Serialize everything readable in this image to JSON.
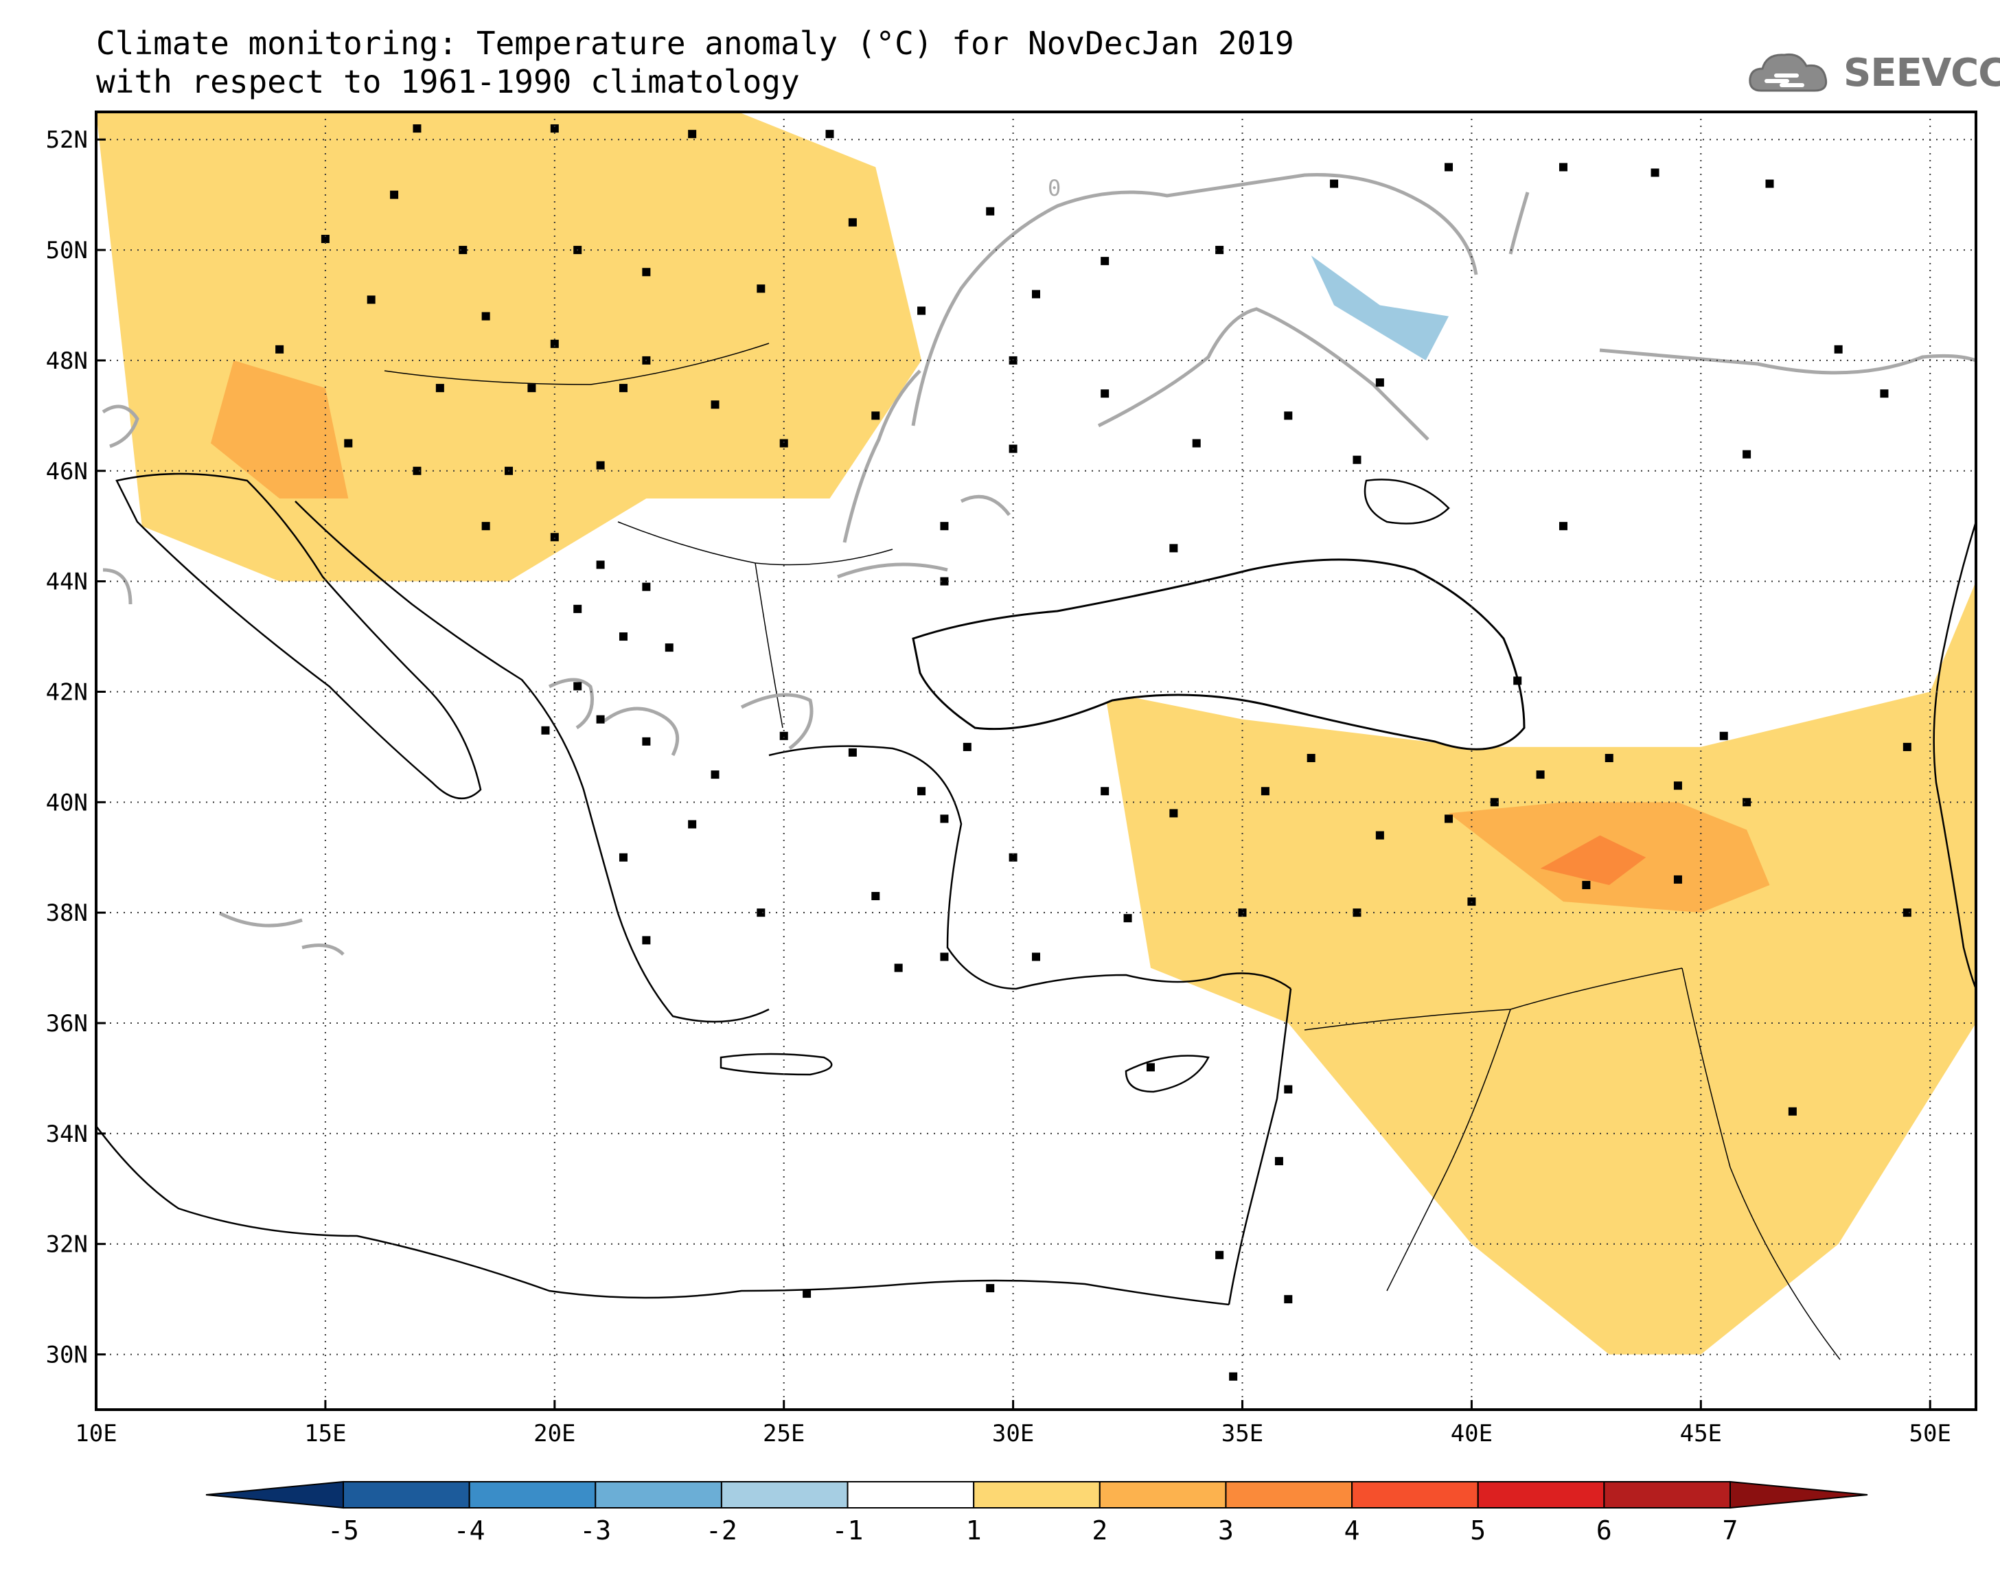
{
  "title": {
    "line1": "Climate monitoring: Temperature anomaly (°C) for NovDecJan 2019",
    "line2": "with respect to 1961-1990 climatology"
  },
  "logo": {
    "text": "SEEVCCC",
    "icon": "cloud-icon"
  },
  "map": {
    "lon_range": [
      10,
      51
    ],
    "lat_range": [
      29,
      52.5
    ],
    "lon_ticks": [
      {
        "value": 10,
        "label": "10E"
      },
      {
        "value": 15,
        "label": "15E"
      },
      {
        "value": 20,
        "label": "20E"
      },
      {
        "value": 25,
        "label": "25E"
      },
      {
        "value": 30,
        "label": "30E"
      },
      {
        "value": 35,
        "label": "35E"
      },
      {
        "value": 40,
        "label": "40E"
      },
      {
        "value": 45,
        "label": "45E"
      },
      {
        "value": 50,
        "label": "50E"
      }
    ],
    "lat_ticks": [
      {
        "value": 30,
        "label": "30N"
      },
      {
        "value": 32,
        "label": "32N"
      },
      {
        "value": 34,
        "label": "34N"
      },
      {
        "value": 36,
        "label": "36N"
      },
      {
        "value": 38,
        "label": "38N"
      },
      {
        "value": 40,
        "label": "40N"
      },
      {
        "value": 42,
        "label": "42N"
      },
      {
        "value": 44,
        "label": "44N"
      },
      {
        "value": 46,
        "label": "46N"
      },
      {
        "value": 48,
        "label": "48N"
      },
      {
        "value": 50,
        "label": "50N"
      },
      {
        "value": 52,
        "label": "52N"
      }
    ],
    "grid": "dotted",
    "contour_label": "0",
    "colors": {
      "anomaly_1_2": "#fdd873",
      "anomaly_2_3": "#fcb24e",
      "anomaly_3_4": "#fa8a3a",
      "anomaly_neg_1_2": "#9ecae1",
      "zero_contour": "#a8a8a8",
      "coast": "#000000"
    }
  },
  "colorbar": {
    "labels": [
      "-5",
      "-4",
      "-3",
      "-2",
      "-1",
      "1",
      "2",
      "3",
      "4",
      "5",
      "6",
      "7"
    ],
    "colors": [
      "#08306b",
      "#1c5b9b",
      "#3a8dc8",
      "#6baed6",
      "#a6cee3",
      "#ffffff",
      "#fdd873",
      "#fcb24e",
      "#fa8a3a",
      "#f5502c",
      "#dc2020",
      "#b41e1e",
      "#8b1010"
    ]
  },
  "chart_data": {
    "type": "heatmap",
    "title": "Climate monitoring: Temperature anomaly (°C) for NovDecJan 2019",
    "subtitle": "with respect to 1961-1990 climatology",
    "xlabel": "",
    "ylabel": "",
    "xlim": [
      10,
      51
    ],
    "ylim": [
      29,
      52.5
    ],
    "levels": [
      -5,
      -4,
      -3,
      -2,
      -1,
      1,
      2,
      3,
      4,
      5,
      6,
      7
    ],
    "regions": [
      {
        "name": "",
        "level": "1-2",
        "lon": [
          10,
          13,
          17,
          20,
          24,
          27,
          28,
          26,
          22,
          19,
          14,
          11,
          10
        ],
        "lat": [
          52.5,
          52.5,
          52.5,
          52.5,
          52.5,
          51.5,
          48,
          45.5,
          45.5,
          44,
          44,
          45,
          52.5
        ]
      },
      {
        "name": "",
        "level": "2-3",
        "lon": [
          13,
          15,
          15.5,
          14,
          12.5,
          13
        ],
        "lat": [
          48,
          47.5,
          45.5,
          45.5,
          46.5,
          48
        ]
      },
      {
        "name": "",
        "level": "1-2",
        "lon": [
          32,
          35,
          40,
          45,
          50,
          51,
          51,
          48,
          45,
          43,
          40,
          36,
          33,
          32
        ],
        "lat": [
          42,
          41.5,
          41,
          41,
          42,
          44,
          36,
          32,
          30,
          30,
          32,
          36,
          37,
          42
        ]
      },
      {
        "name": "",
        "level": "2-3",
        "lon": [
          39.5,
          42,
          44.5,
          46,
          46.5,
          45,
          42,
          39.5
        ],
        "lat": [
          39.8,
          40,
          40,
          39.5,
          38.5,
          38,
          38.2,
          39.8
        ]
      },
      {
        "name": "",
        "level": "3-4",
        "lon": [
          41.5,
          42.8,
          43.8,
          43,
          41.5
        ],
        "lat": [
          38.8,
          39.4,
          39,
          38.5,
          38.8
        ]
      },
      {
        "name": "",
        "level": "-2--1",
        "lon": [
          36.5,
          38,
          39.5,
          39,
          37,
          36.5
        ],
        "lat": [
          49.9,
          49,
          48.8,
          48,
          49,
          49.9
        ]
      }
    ],
    "stations": [
      [
        17,
        52.2
      ],
      [
        20,
        52.2
      ],
      [
        23,
        52.1
      ],
      [
        26,
        52.1
      ],
      [
        16.5,
        51
      ],
      [
        15,
        50.2
      ],
      [
        18,
        50
      ],
      [
        20.5,
        50
      ],
      [
        22,
        49.6
      ],
      [
        16,
        49.1
      ],
      [
        18.5,
        48.8
      ],
      [
        20,
        48.3
      ],
      [
        22,
        48
      ],
      [
        14,
        48.2
      ],
      [
        17.5,
        47.5
      ],
      [
        19.5,
        47.5
      ],
      [
        21.5,
        47.5
      ],
      [
        23.5,
        47.2
      ],
      [
        15.5,
        46.5
      ],
      [
        17,
        46
      ],
      [
        19,
        46
      ],
      [
        21,
        46.1
      ],
      [
        18.5,
        45
      ],
      [
        20,
        44.8
      ],
      [
        21,
        44.3
      ],
      [
        22,
        43.9
      ],
      [
        20.5,
        43.5
      ],
      [
        21.5,
        43
      ],
      [
        22.5,
        42.8
      ],
      [
        20.5,
        42.1
      ],
      [
        19.8,
        41.3
      ],
      [
        21,
        41.5
      ],
      [
        22,
        41.1
      ],
      [
        23.5,
        40.5
      ],
      [
        25,
        41.2
      ],
      [
        26.5,
        40.9
      ],
      [
        28,
        40.2
      ],
      [
        29,
        41
      ],
      [
        28.5,
        39.7
      ],
      [
        27,
        38.3
      ],
      [
        28.5,
        37.2
      ],
      [
        30,
        39
      ],
      [
        32,
        40.2
      ],
      [
        33.5,
        39.8
      ],
      [
        35.5,
        40.2
      ],
      [
        36.5,
        40.8
      ],
      [
        38,
        39.4
      ],
      [
        39.5,
        39.7
      ],
      [
        40.5,
        40
      ],
      [
        41.5,
        40.5
      ],
      [
        43,
        40.8
      ],
      [
        44.5,
        40.3
      ],
      [
        45.5,
        41.2
      ],
      [
        46,
        40
      ],
      [
        44.5,
        38.6
      ],
      [
        42.5,
        38.5
      ],
      [
        40,
        38.2
      ],
      [
        37.5,
        38
      ],
      [
        35,
        38
      ],
      [
        32.5,
        37.9
      ],
      [
        30.5,
        37.2
      ],
      [
        27.5,
        37
      ],
      [
        24.5,
        38
      ],
      [
        22,
        37.5
      ],
      [
        21.5,
        39
      ],
      [
        23,
        39.6
      ],
      [
        33,
        35.2
      ],
      [
        36,
        34.8
      ],
      [
        35.8,
        33.5
      ],
      [
        34.5,
        31.8
      ],
      [
        36,
        31
      ],
      [
        34.8,
        29.6
      ],
      [
        25.5,
        31.1
      ],
      [
        29.5,
        31.2
      ],
      [
        47,
        34.4
      ],
      [
        49.5,
        38
      ],
      [
        49.5,
        41
      ],
      [
        46,
        46.3
      ],
      [
        42,
        45
      ],
      [
        41,
        42.2
      ],
      [
        37.5,
        46.2
      ],
      [
        33.5,
        44.6
      ],
      [
        34,
        46.5
      ],
      [
        38,
        47.6
      ],
      [
        36,
        47
      ],
      [
        32,
        47.4
      ],
      [
        30,
        48
      ],
      [
        27,
        47
      ],
      [
        25,
        46.5
      ],
      [
        28.5,
        45
      ],
      [
        30,
        46.4
      ],
      [
        28.5,
        44
      ],
      [
        32,
        49.8
      ],
      [
        34.5,
        50
      ],
      [
        37,
        51.2
      ],
      [
        39.5,
        51.5
      ],
      [
        42,
        51.5
      ],
      [
        44,
        51.4
      ],
      [
        46.5,
        51.2
      ],
      [
        48,
        48.2
      ],
      [
        49,
        47.4
      ],
      [
        29.5,
        50.7
      ],
      [
        26.5,
        50.5
      ],
      [
        24.5,
        49.3
      ],
      [
        28,
        48.9
      ],
      [
        30.5,
        49.2
      ]
    ]
  }
}
